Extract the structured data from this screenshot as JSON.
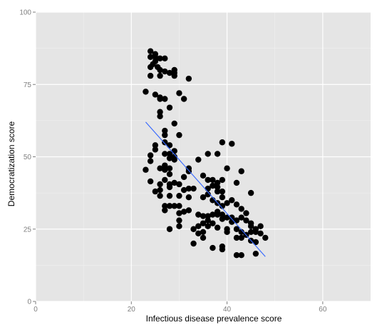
{
  "chart_data": {
    "type": "scatter",
    "title": "",
    "xlabel": "Infectious disease prevalence score",
    "ylabel": "Democratization score",
    "xlim": [
      0,
      70
    ],
    "ylim": [
      0,
      100
    ],
    "x_ticks": [
      "0",
      "20",
      "40",
      "60"
    ],
    "y_ticks": [
      "0",
      "25",
      "50",
      "75",
      "100"
    ],
    "grid": true,
    "colors": {
      "panel": "#e5e5e5",
      "grid_major": "#ffffff",
      "grid_minor": "#f2f2f2",
      "points": "#000000",
      "fit_line": "#3366ff",
      "tick_text": "#7f7f7f"
    },
    "fit_line": {
      "x": [
        23,
        48
      ],
      "y": [
        62,
        15.5
      ]
    },
    "points": [
      [
        24,
        86.5
      ],
      [
        25,
        85.5
      ],
      [
        25,
        84.5
      ],
      [
        24,
        84.5
      ],
      [
        26,
        84
      ],
      [
        27,
        84
      ],
      [
        25,
        83
      ],
      [
        24.5,
        82
      ],
      [
        24,
        81
      ],
      [
        25.5,
        81
      ],
      [
        26,
        80
      ],
      [
        27,
        79.5
      ],
      [
        29,
        80
      ],
      [
        29,
        79
      ],
      [
        28,
        79
      ],
      [
        26,
        78
      ],
      [
        24,
        78
      ],
      [
        29,
        78
      ],
      [
        32,
        77
      ],
      [
        23,
        72.5
      ],
      [
        25,
        71.5
      ],
      [
        26,
        70.5
      ],
      [
        26,
        70
      ],
      [
        27,
        70
      ],
      [
        30,
        72
      ],
      [
        31,
        70
      ],
      [
        28,
        67
      ],
      [
        26,
        65.5
      ],
      [
        26,
        64
      ],
      [
        29,
        61.5
      ],
      [
        27,
        59
      ],
      [
        27,
        57.5
      ],
      [
        30,
        57.5
      ],
      [
        27,
        55
      ],
      [
        28,
        54
      ],
      [
        25,
        54
      ],
      [
        25,
        52.5
      ],
      [
        27,
        51
      ],
      [
        28,
        51
      ],
      [
        29,
        52
      ],
      [
        29,
        50
      ],
      [
        28,
        49.5
      ],
      [
        24,
        50.5
      ],
      [
        24,
        48.5
      ],
      [
        29,
        49
      ],
      [
        27,
        47
      ],
      [
        26,
        46
      ],
      [
        28,
        46
      ],
      [
        27,
        45.5
      ],
      [
        23,
        45.5
      ],
      [
        32,
        46
      ],
      [
        32,
        45
      ],
      [
        34,
        49
      ],
      [
        36,
        51
      ],
      [
        38,
        51
      ],
      [
        39,
        55
      ],
      [
        41,
        54.5
      ],
      [
        40,
        46
      ],
      [
        43,
        45
      ],
      [
        28,
        44
      ],
      [
        31,
        43
      ],
      [
        27,
        42
      ],
      [
        24,
        41.5
      ],
      [
        26,
        40.5
      ],
      [
        28,
        40.5
      ],
      [
        28,
        39.5
      ],
      [
        29,
        41
      ],
      [
        26,
        38.5
      ],
      [
        25,
        38
      ],
      [
        30,
        40.5
      ],
      [
        32,
        39
      ],
      [
        31,
        38.5
      ],
      [
        33,
        39
      ],
      [
        35,
        43.5
      ],
      [
        36,
        42
      ],
      [
        37,
        42
      ],
      [
        39,
        42
      ],
      [
        38,
        41
      ],
      [
        37,
        40
      ],
      [
        38,
        39.5
      ],
      [
        36,
        39
      ],
      [
        38,
        38
      ],
      [
        36,
        37
      ],
      [
        39,
        38
      ],
      [
        42,
        41
      ],
      [
        45,
        37.5
      ],
      [
        26,
        36.5
      ],
      [
        28,
        36.5
      ],
      [
        30,
        36.5
      ],
      [
        32,
        36
      ],
      [
        35,
        36
      ],
      [
        39,
        36
      ],
      [
        37,
        35
      ],
      [
        38,
        34
      ],
      [
        40,
        34
      ],
      [
        41,
        35
      ],
      [
        39,
        33
      ],
      [
        42,
        33.5
      ],
      [
        43,
        32
      ],
      [
        44,
        30.5
      ],
      [
        28,
        33
      ],
      [
        29,
        33
      ],
      [
        30,
        33
      ],
      [
        27,
        33
      ],
      [
        27,
        31.5
      ],
      [
        30,
        30.5
      ],
      [
        32,
        31.5
      ],
      [
        31,
        31
      ],
      [
        34,
        30
      ],
      [
        35,
        29.5
      ],
      [
        36,
        29.5
      ],
      [
        36,
        28
      ],
      [
        37,
        30
      ],
      [
        38,
        31
      ],
      [
        38,
        30
      ],
      [
        39,
        30
      ],
      [
        39,
        28.5
      ],
      [
        40,
        29
      ],
      [
        41,
        27.5
      ],
      [
        41,
        29
      ],
      [
        42,
        28
      ],
      [
        43,
        29
      ],
      [
        44,
        28
      ],
      [
        45,
        27
      ],
      [
        45,
        26
      ],
      [
        46,
        25
      ],
      [
        47,
        26
      ],
      [
        35,
        27
      ],
      [
        36,
        26
      ],
      [
        37,
        27
      ],
      [
        38,
        25.5
      ],
      [
        40,
        25
      ],
      [
        40,
        24
      ],
      [
        42,
        25
      ],
      [
        43,
        24
      ],
      [
        44,
        23
      ],
      [
        45,
        24
      ],
      [
        46,
        24
      ],
      [
        47,
        23.5
      ],
      [
        48,
        22
      ],
      [
        30,
        26
      ],
      [
        28,
        25
      ],
      [
        33,
        25
      ],
      [
        34,
        23.5
      ],
      [
        35,
        24
      ],
      [
        42,
        22
      ],
      [
        43,
        22
      ],
      [
        45,
        21
      ],
      [
        46,
        20.5
      ],
      [
        33,
        20
      ],
      [
        35,
        22
      ],
      [
        37,
        18.5
      ],
      [
        39,
        19
      ],
      [
        39,
        18
      ],
      [
        42,
        16
      ],
      [
        43,
        16
      ],
      [
        46,
        16.5
      ],
      [
        30,
        28
      ],
      [
        34,
        26
      ]
    ]
  }
}
